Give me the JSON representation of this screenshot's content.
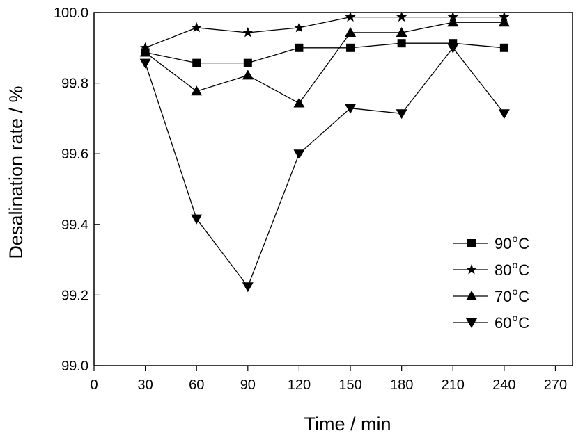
{
  "chart_data": {
    "type": "line",
    "title": "",
    "xlabel": "Time / min",
    "ylabel": "Desalination rate / %",
    "xlim": [
      0,
      280
    ],
    "ylim": [
      99.0,
      100.0
    ],
    "x_ticks": [
      0,
      30,
      60,
      90,
      120,
      150,
      180,
      210,
      240,
      270
    ],
    "x_tick_labels": [
      "0",
      "30",
      "60",
      "90",
      "120",
      "150",
      "180",
      "210",
      "240",
      "270"
    ],
    "y_ticks": [
      99.0,
      99.2,
      99.4,
      99.6,
      99.8,
      100.0
    ],
    "y_tick_labels": [
      "99.0",
      "99.2",
      "99.4",
      "99.6",
      "99.8",
      "100.0"
    ],
    "grid": false,
    "legend_position": "bottom-right",
    "series": [
      {
        "name": "90°C",
        "name_value": "90",
        "name_degree": "o",
        "name_unit": "C",
        "marker": "square",
        "color": "#000000",
        "x": [
          30,
          60,
          90,
          120,
          150,
          180,
          210,
          240
        ],
        "y": [
          99.887,
          99.857,
          99.857,
          99.9,
          99.9,
          99.913,
          99.913,
          99.9
        ]
      },
      {
        "name": "80°C",
        "name_value": "80",
        "name_degree": "o",
        "name_unit": "C",
        "marker": "star",
        "color": "#000000",
        "x": [
          30,
          60,
          90,
          120,
          150,
          180,
          210,
          240
        ],
        "y": [
          99.9,
          99.957,
          99.943,
          99.957,
          99.987,
          99.987,
          99.987,
          99.987
        ]
      },
      {
        "name": "70°C",
        "name_value": "70",
        "name_degree": "o",
        "name_unit": "C",
        "marker": "triangle-up",
        "color": "#000000",
        "x": [
          30,
          60,
          90,
          120,
          150,
          180,
          210,
          240
        ],
        "y": [
          99.887,
          99.777,
          99.822,
          99.743,
          99.943,
          99.943,
          99.972,
          99.972
        ]
      },
      {
        "name": "60°C",
        "name_value": "60",
        "name_degree": "o",
        "name_unit": "C",
        "marker": "triangle-down",
        "color": "#000000",
        "x": [
          30,
          60,
          90,
          120,
          150,
          180,
          210,
          240
        ],
        "y": [
          99.857,
          99.416,
          99.224,
          99.6,
          99.729,
          99.714,
          99.9,
          99.714
        ]
      }
    ]
  }
}
